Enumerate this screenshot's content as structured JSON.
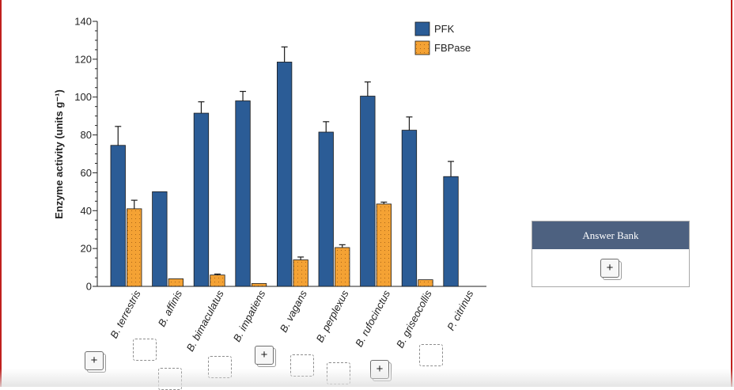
{
  "chart_data": {
    "type": "bar",
    "ylabel": "Enzyme activity (units g⁻¹)",
    "ylim": [
      0,
      140
    ],
    "yticks": [
      0,
      20,
      40,
      60,
      80,
      100,
      120,
      140
    ],
    "categories": [
      "B. terrestris",
      "B. affinis",
      "B. bimaculatus",
      "B. impatiens",
      "B. vagans",
      "B. perplexus",
      "B. rufocinctus",
      "B. griseocollis",
      "P. citrinus"
    ],
    "series": [
      {
        "name": "PFK",
        "color": "#2b5c96",
        "values": [
          74.5,
          50,
          91.5,
          98,
          118.5,
          81.5,
          100.5,
          82.5,
          58
        ],
        "errors": [
          10,
          null,
          6,
          5,
          8,
          5.5,
          7.5,
          7,
          8
        ]
      },
      {
        "name": "FBPase",
        "color": "#f4a234",
        "values": [
          41,
          4,
          6,
          1.5,
          14,
          20.5,
          43.5,
          3.5,
          null
        ],
        "errors": [
          4.5,
          null,
          0.5,
          null,
          1.5,
          1.5,
          1,
          null,
          null
        ]
      }
    ],
    "legend_position": "top-right",
    "grid": false
  },
  "answer_bank": {
    "title": "Answer Bank",
    "add_label": "+"
  },
  "drop_targets": [
    {
      "state": "filled",
      "label": "+"
    },
    {
      "state": "empty",
      "label": ""
    },
    {
      "state": "empty",
      "label": ""
    },
    {
      "state": "empty",
      "label": ""
    },
    {
      "state": "filled",
      "label": "+"
    },
    {
      "state": "empty",
      "label": ""
    },
    {
      "state": "empty",
      "label": ""
    },
    {
      "state": "filled",
      "label": "+"
    },
    {
      "state": "empty",
      "label": ""
    }
  ]
}
